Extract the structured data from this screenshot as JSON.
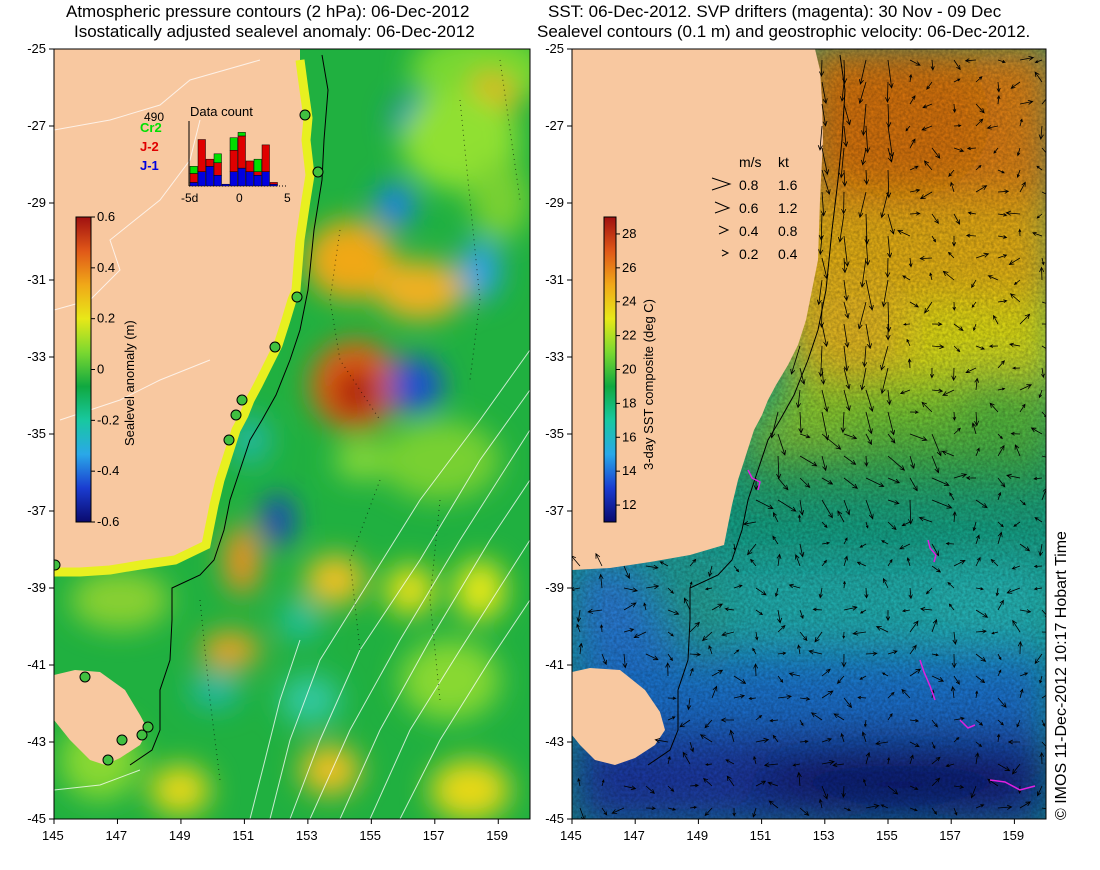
{
  "left_panel": {
    "title_line1": "Atmospheric pressure contours (2 hPa): 06-Dec-2012",
    "title_line2": "Isostatically adjusted sealevel anomaly: 06-Dec-2012",
    "colorbar": {
      "label": "Sealevel anomaly (m)",
      "ticks": [
        "0.6",
        "0.4",
        "0.2",
        "0",
        "-0.2",
        "-0.4",
        "-0.6"
      ],
      "range": [
        -0.6,
        0.6
      ],
      "colormap": [
        "#0a0a6e",
        "#1a3cd0",
        "#2aa8e8",
        "#18c8a0",
        "#10a840",
        "#7ad830",
        "#e8e818",
        "#f0a818",
        "#e05818",
        "#a01010"
      ]
    },
    "data_count": {
      "title": "Data count",
      "max_label": "490",
      "missions": [
        {
          "name": "Cr2",
          "color": "#00e000"
        },
        {
          "name": "J-2",
          "color": "#e00000"
        },
        {
          "name": "J-1",
          "color": "#0000e0"
        }
      ],
      "x_ticks": [
        "-5d",
        "0",
        "5"
      ],
      "days": [
        -6,
        -5,
        -4,
        -3,
        -2,
        -1,
        0,
        1,
        2,
        3,
        4,
        5
      ],
      "stacks": [
        {
          "blue": 0.1,
          "red": 0.25,
          "green": 0.2
        },
        {
          "blue": 0.4,
          "red": 0.9,
          "green": 0.0
        },
        {
          "blue": 0.55,
          "red": 0.2,
          "green": 0.0
        },
        {
          "blue": 0.3,
          "red": 0.35,
          "green": 0.25
        },
        {
          "blue": 0.05,
          "red": 0.0,
          "green": 0.0
        },
        {
          "blue": 0.4,
          "red": 0.6,
          "green": 0.35
        },
        {
          "blue": 0.5,
          "red": 0.9,
          "green": 0.1
        },
        {
          "blue": 0.4,
          "red": 0.3,
          "green": 0.0
        },
        {
          "blue": 0.3,
          "red": 0.1,
          "green": 0.35
        },
        {
          "blue": 0.4,
          "red": 0.75,
          "green": 0.0
        },
        {
          "blue": 0.05,
          "red": 0.05,
          "green": 0.0
        },
        {
          "blue": 0.0,
          "red": 0.0,
          "green": 0.0
        }
      ]
    }
  },
  "right_panel": {
    "title_line1": "SST: 06-Dec-2012. SVP drifters (magenta): 30 Nov - 09 Dec",
    "title_line2": "Sealevel contours (0.1 m) and geostrophic velocity: 06-Dec-2012.",
    "colorbar": {
      "label": "3-day SST composite (deg C)",
      "ticks": [
        "28",
        "26",
        "24",
        "22",
        "20",
        "18",
        "16",
        "14",
        "12"
      ],
      "range": [
        11,
        29
      ],
      "colormap": [
        "#0a0a6e",
        "#1a3cd0",
        "#2aa8e8",
        "#18c8a0",
        "#10a840",
        "#7ad830",
        "#e8e818",
        "#f0a818",
        "#e05818",
        "#a01010"
      ]
    },
    "velocity_legend": {
      "header_ms": "m/s",
      "header_kt": "kt",
      "rows": [
        {
          "ms": "0.8",
          "kt": "1.6"
        },
        {
          "ms": "0.6",
          "kt": "1.2"
        },
        {
          "ms": "0.4",
          "kt": "0.8"
        },
        {
          "ms": "0.2",
          "kt": "0.4"
        }
      ]
    }
  },
  "axes": {
    "lon_range": [
      145,
      160
    ],
    "lat_range": [
      -45,
      -25
    ],
    "lon_ticks": [
      "145",
      "147",
      "149",
      "151",
      "153",
      "155",
      "157",
      "159"
    ],
    "lat_ticks": [
      "-25",
      "-27",
      "-29",
      "-31",
      "-33",
      "-35",
      "-37",
      "-39",
      "-41",
      "-43",
      "-45"
    ]
  },
  "map_colors": {
    "land": "#f8c8a0",
    "coast_band": "#f0f020",
    "drifter": "#e020e0"
  },
  "copyright": "© IMOS 11-Dec-2012 10:17 Hobart Time"
}
